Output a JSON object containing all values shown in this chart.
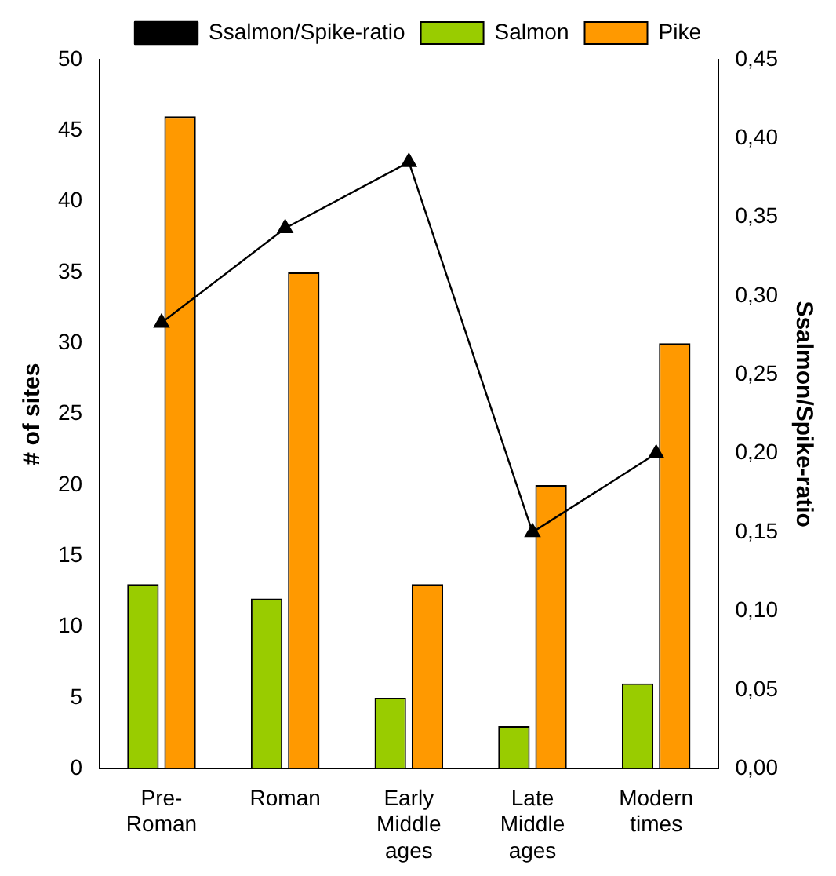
{
  "chart_data": {
    "type": "bar",
    "categories": [
      "Pre-Roman",
      "Roman",
      "Early Middle ages",
      "Late Middle ages",
      "Modern times"
    ],
    "ylabel": "# of sites",
    "y2label": "Ssalmon/Spike-ratio",
    "series": [
      {
        "name": "Salmon",
        "color": "#99cc00",
        "values": [
          13,
          12,
          5,
          3,
          6
        ]
      },
      {
        "name": "Pike",
        "color": "#ff9900",
        "values": [
          46,
          35,
          13,
          20,
          30
        ]
      },
      {
        "name": "Ssalmon/Spike-ratio",
        "type": "line",
        "axis": "y2",
        "color": "#000000",
        "marker": "triangle",
        "values": [
          0.283,
          0.343,
          0.385,
          0.15,
          0.2
        ]
      }
    ],
    "ylim": [
      0,
      50
    ],
    "yticks": [
      0,
      5,
      10,
      15,
      20,
      25,
      30,
      35,
      40,
      45,
      50
    ],
    "y2lim": [
      0,
      0.45
    ],
    "y2ticks": [
      {
        "value": 0,
        "label": "0,00"
      },
      {
        "value": 0.05,
        "label": "0,05"
      },
      {
        "value": 0.1,
        "label": "0,10"
      },
      {
        "value": 0.15,
        "label": "0,15"
      },
      {
        "value": 0.2,
        "label": "0,20"
      },
      {
        "value": 0.25,
        "label": "0,25"
      },
      {
        "value": 0.3,
        "label": "0,30"
      },
      {
        "value": 0.35,
        "label": "0,35"
      },
      {
        "value": 0.4,
        "label": "0,40"
      },
      {
        "value": 0.45,
        "label": "0,45"
      }
    ],
    "grid": false,
    "legend": "top"
  }
}
